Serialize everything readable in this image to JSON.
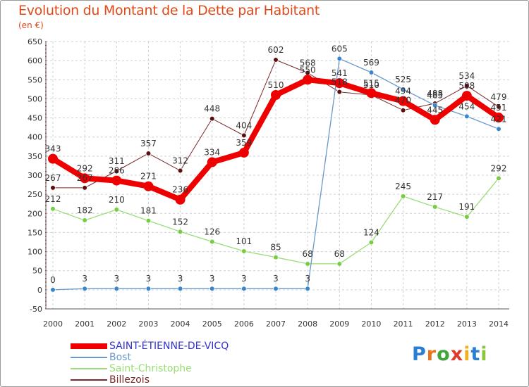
{
  "header": {
    "title": "Evolution du Montant de la Dette par Habitant",
    "unit": "(en €)"
  },
  "brand": {
    "letters": [
      "P",
      "r",
      "o",
      "x",
      "i",
      "t",
      "i"
    ],
    "colors": [
      "#2a7fd4",
      "#e8741c",
      "#3fa63a",
      "#e03a2a",
      "#f0b020",
      "#2a7fd4",
      "#8cc63e"
    ]
  },
  "chart_data": {
    "type": "line",
    "title": "Evolution du Montant de la Dette par Habitant",
    "ylabel": "(en €)",
    "xlabel": "",
    "x": [
      "2000",
      "2001",
      "2002",
      "2003",
      "2004",
      "2005",
      "2006",
      "2007",
      "2008",
      "2009",
      "2010",
      "2011",
      "2012",
      "2013",
      "2014"
    ],
    "ylim": [
      -50,
      650
    ],
    "yticks": [
      -50,
      0,
      50,
      100,
      150,
      200,
      250,
      300,
      350,
      400,
      450,
      500,
      550,
      600,
      650
    ],
    "grid": true,
    "legend_position": "bottom-left",
    "series": [
      {
        "name": "Billezois",
        "color": "#7a2a2a",
        "marker": "#5a1010",
        "width": 1,
        "values": [
          267,
          267,
          311,
          357,
          312,
          448,
          404,
          602,
          568,
          518,
          510,
          470,
          488,
          534,
          479
        ],
        "labels": [
          "267",
          "267",
          "311",
          "357",
          "312",
          "448",
          "404",
          "602",
          "568",
          "518",
          "510",
          "470",
          "488",
          "534",
          "479"
        ]
      },
      {
        "name": "Saint-Christophe",
        "color": "#99dd77",
        "marker": "#77cc44",
        "width": 1.3,
        "values": [
          212,
          182,
          210,
          181,
          152,
          126,
          101,
          85,
          68,
          68,
          124,
          245,
          217,
          191,
          292
        ],
        "labels": [
          "212",
          "182",
          "210",
          "181",
          "152",
          "126",
          "101",
          "85",
          "68",
          "68",
          "124",
          "245",
          "217",
          "191",
          "292"
        ]
      },
      {
        "name": "Bost",
        "color": "#6699cc",
        "marker": "#3a86cc",
        "width": 1.3,
        "values": [
          0,
          3,
          3,
          3,
          3,
          3,
          3,
          3,
          3,
          605,
          569,
          525,
          483,
          454,
          421
        ],
        "labels": [
          "0",
          "3",
          "3",
          "3",
          "3",
          "3",
          "3",
          "3",
          "3",
          "605",
          "569",
          "525",
          "483",
          "454",
          "421"
        ]
      },
      {
        "name": "SAINT-ÉTIENNE-DE-VICQ",
        "color": "#ee0000",
        "marker": "#ee0000",
        "width": 8,
        "values": [
          343,
          292,
          286,
          271,
          236,
          334,
          359,
          510,
          550,
          541,
          515,
          494,
          445,
          508,
          451
        ],
        "labels": [
          "343",
          "292",
          "286",
          "271",
          "236",
          "334",
          "359",
          "510",
          "550",
          "541",
          "515",
          "494",
          "445",
          "508",
          "451"
        ]
      }
    ],
    "legend_order": [
      "SAINT-ÉTIENNE-DE-VICQ",
      "Bost",
      "Saint-Christophe",
      "Billezois"
    ]
  }
}
